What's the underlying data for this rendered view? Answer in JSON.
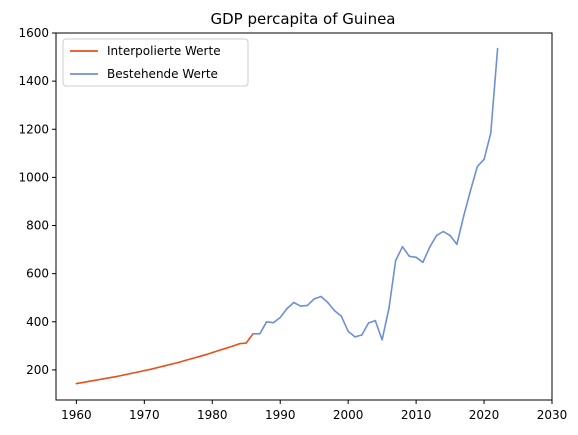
{
  "chart_data": {
    "type": "line",
    "title": "GDP percapita of Guinea",
    "xlabel": "",
    "ylabel": "",
    "xlim": [
      1957,
      2030
    ],
    "ylim": [
      75,
      1600
    ],
    "xticks": [
      1960,
      1970,
      1980,
      1990,
      2000,
      2010,
      2020,
      2030
    ],
    "yticks": [
      200,
      400,
      600,
      800,
      1000,
      1200,
      1400,
      1600
    ],
    "grid": false,
    "legend_position": "top-left",
    "series": [
      {
        "name": "Interpolierte Werte",
        "color": "#e8501a",
        "x": [
          1960,
          1961,
          1962,
          1963,
          1964,
          1965,
          1966,
          1967,
          1968,
          1969,
          1970,
          1971,
          1972,
          1973,
          1974,
          1975,
          1976,
          1977,
          1978,
          1979,
          1980,
          1981,
          1982,
          1983,
          1984,
          1985,
          1986
        ],
        "y": [
          143,
          148,
          153,
          158,
          163,
          168,
          173,
          179,
          185,
          191,
          197,
          203,
          210,
          217,
          224,
          231,
          239,
          247,
          255,
          263,
          272,
          281,
          290,
          299,
          309,
          312,
          350
        ]
      },
      {
        "name": "Bestehende Werte",
        "color": "#6f8fd4",
        "x": [
          1986,
          1987,
          1988,
          1989,
          1990,
          1991,
          1992,
          1993,
          1994,
          1995,
          1996,
          1997,
          1998,
          1999,
          2000,
          2001,
          2002,
          2003,
          2004,
          2005,
          2006,
          2007,
          2008,
          2009,
          2010,
          2011,
          2012,
          2013,
          2014,
          2015,
          2016,
          2017,
          2018,
          2019,
          2020,
          2021,
          2022
        ],
        "y": [
          350,
          350,
          400,
          396,
          418,
          455,
          480,
          465,
          468,
          495,
          505,
          480,
          446,
          423,
          360,
          337,
          345,
          395,
          405,
          325,
          455,
          655,
          712,
          672,
          668,
          647,
          710,
          758,
          775,
          758,
          722,
          840,
          945,
          1045,
          1075,
          1185,
          1535
        ]
      }
    ]
  }
}
